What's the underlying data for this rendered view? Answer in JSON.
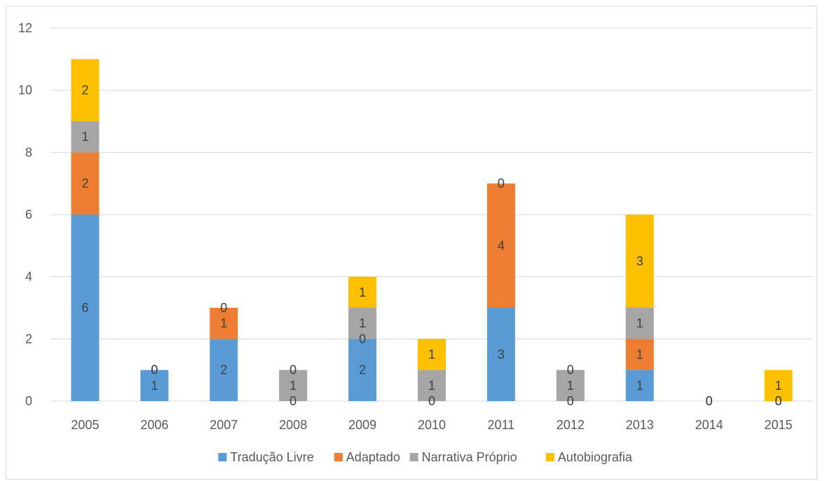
{
  "chart_data": {
    "type": "bar",
    "stacked": true,
    "categories": [
      "2005",
      "2006",
      "2007",
      "2008",
      "2009",
      "2010",
      "2011",
      "2012",
      "2013",
      "2014",
      "2015"
    ],
    "series": [
      {
        "name": "Tradução Livre",
        "color": "#5B9BD5",
        "values": [
          6,
          1,
          2,
          0,
          2,
          0,
          3,
          0,
          1,
          0,
          0
        ]
      },
      {
        "name": "Adaptado",
        "color": "#ED7D31",
        "values": [
          2,
          0,
          1,
          0,
          0,
          0,
          4,
          0,
          1,
          0,
          0
        ]
      },
      {
        "name": "Narrativa Próprio",
        "color": "#A5A5A5",
        "values": [
          1,
          0,
          0,
          1,
          1,
          1,
          0,
          1,
          1,
          0,
          0
        ]
      },
      {
        "name": "Autobiografia",
        "color": "#FFC000",
        "values": [
          2,
          0,
          0,
          0,
          1,
          1,
          0,
          0,
          3,
          0,
          1
        ]
      }
    ],
    "ylim": [
      0,
      12
    ],
    "yticks": [
      0,
      2,
      4,
      6,
      8,
      10,
      12
    ],
    "grid": true,
    "legend": "bottom",
    "data_labels": [
      {
        "category": "2005",
        "series": "Tradução Livre",
        "text": "6"
      },
      {
        "category": "2005",
        "series": "Adaptado",
        "text": "2"
      },
      {
        "category": "2005",
        "series": "Narrativa Próprio",
        "text": "1"
      },
      {
        "category": "2005",
        "series": "Autobiografia",
        "text": "2"
      },
      {
        "category": "2006",
        "series": "Tradução Livre",
        "text": "1"
      },
      {
        "category": "2006",
        "series": "Adaptado",
        "text": "0"
      },
      {
        "category": "2006",
        "series": "Narrativa Próprio",
        "text": "0"
      },
      {
        "category": "2007",
        "series": "Tradução Livre",
        "text": "2"
      },
      {
        "category": "2007",
        "series": "Adaptado",
        "text": "1"
      },
      {
        "category": "2007",
        "series": "Narrativa Próprio",
        "text": "0"
      },
      {
        "category": "2008",
        "series": "Tradução Livre",
        "text": "0"
      },
      {
        "category": "2008",
        "series": "Narrativa Próprio",
        "text": "1"
      },
      {
        "category": "2008",
        "series": "Autobiografia",
        "text": "0"
      },
      {
        "category": "2009",
        "series": "Tradução Livre",
        "text": "2"
      },
      {
        "category": "2009",
        "series": "Adaptado",
        "text": "0"
      },
      {
        "category": "2009",
        "series": "Narrativa Próprio",
        "text": "1"
      },
      {
        "category": "2009",
        "series": "Autobiografia",
        "text": "1"
      },
      {
        "category": "2010",
        "series": "Tradução Livre",
        "text": "0"
      },
      {
        "category": "2010",
        "series": "Narrativa Próprio",
        "text": "1"
      },
      {
        "category": "2010",
        "series": "Autobiografia",
        "text": "1"
      },
      {
        "category": "2011",
        "series": "Tradução Livre",
        "text": "3"
      },
      {
        "category": "2011",
        "series": "Adaptado",
        "text": "4"
      },
      {
        "category": "2011",
        "series": "Narrativa Próprio",
        "text": "0"
      },
      {
        "category": "2012",
        "series": "Tradução Livre",
        "text": "0"
      },
      {
        "category": "2012",
        "series": "Narrativa Próprio",
        "text": "1"
      },
      {
        "category": "2012",
        "series": "Autobiografia",
        "text": "0"
      },
      {
        "category": "2013",
        "series": "Tradução Livre",
        "text": "1"
      },
      {
        "category": "2013",
        "series": "Adaptado",
        "text": "1"
      },
      {
        "category": "2013",
        "series": "Narrativa Próprio",
        "text": "1"
      },
      {
        "category": "2013",
        "series": "Autobiografia",
        "text": "3"
      },
      {
        "category": "2014",
        "series": "Tradução Livre",
        "text": "0"
      },
      {
        "category": "2014",
        "series": "Adaptado",
        "text": "0"
      },
      {
        "category": "2015",
        "series": "Tradução Livre",
        "text": "0"
      },
      {
        "category": "2015",
        "series": "Narrativa Próprio",
        "text": "0"
      },
      {
        "category": "2015",
        "series": "Autobiografia",
        "text": "1"
      }
    ]
  }
}
